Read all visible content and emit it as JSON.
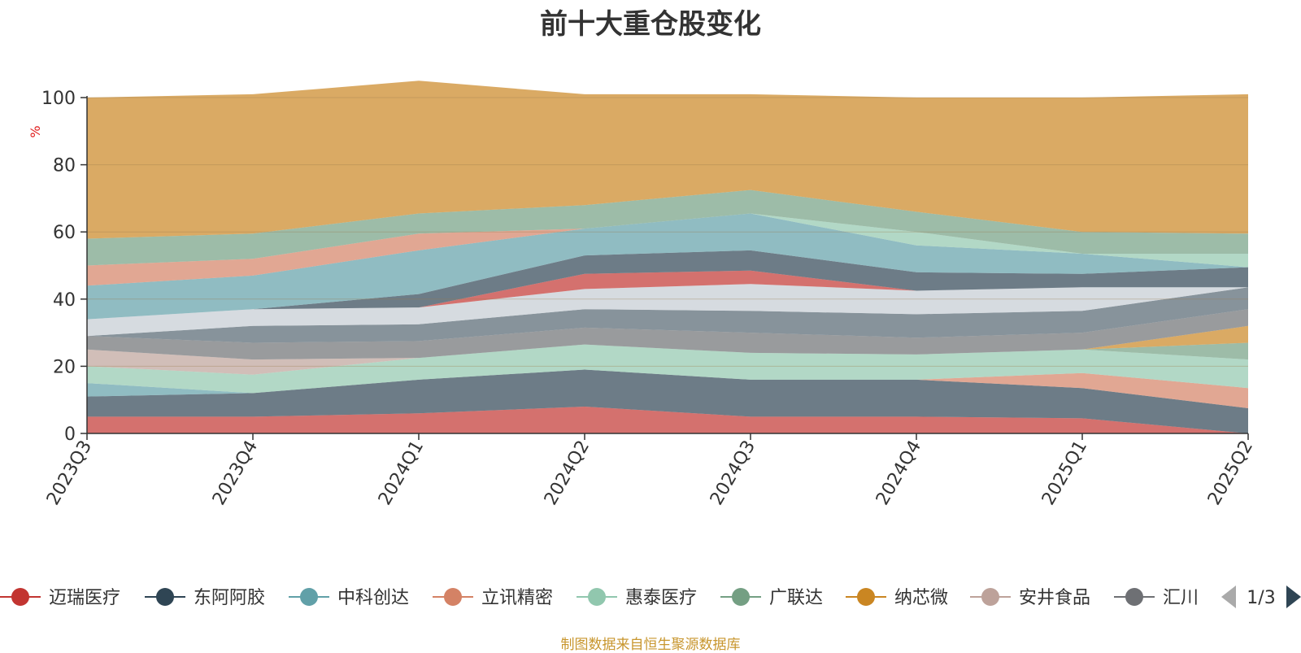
{
  "chart_data": {
    "type": "area",
    "title": "前十大重仓股变化",
    "ylabel": "%",
    "ylim": [
      0,
      100
    ],
    "yticks": [
      0,
      20,
      40,
      60,
      80,
      100
    ],
    "x": [
      "2023Q3",
      "2023Q4",
      "2024Q1",
      "2024Q2",
      "2024Q3",
      "2024Q4",
      "2025Q1",
      "2025Q2"
    ],
    "grid": true,
    "stacked_to_100": true,
    "series": [
      {
        "name": "迈瑞医疗",
        "color": "#c23531",
        "values": [
          5,
          5,
          6,
          8,
          5,
          5,
          4.5,
          0
        ]
      },
      {
        "name": "东阿阿胶",
        "color": "#2f4554",
        "values": [
          6,
          7,
          10,
          11,
          11,
          11,
          9,
          7.5
        ]
      },
      {
        "name": "中科创达",
        "color": "#61a0a8",
        "values": [
          4,
          0,
          0,
          0,
          0,
          0,
          0,
          0
        ]
      },
      {
        "name": "立讯精密",
        "color": "#d48265",
        "values": [
          0,
          0,
          0,
          0,
          0,
          0,
          4.5,
          6
        ]
      },
      {
        "name": "惠泰医疗",
        "color": "#91c7ae",
        "values": [
          5,
          5.5,
          6.5,
          7.5,
          8,
          7.5,
          7,
          8.5
        ]
      },
      {
        "name": "广联达",
        "color": "#749f83",
        "values": [
          0,
          0,
          0,
          0,
          0,
          0,
          0,
          5
        ]
      },
      {
        "name": "纳芯微",
        "color": "#ca8622",
        "values": [
          0,
          0,
          0,
          0,
          0,
          0,
          0,
          5
        ]
      },
      {
        "name": "安井食品",
        "color": "#bda29a",
        "values": [
          5,
          4.5,
          0,
          0,
          0,
          0,
          0,
          0
        ]
      },
      {
        "name": "汇川技术",
        "color": "#6e7074",
        "values": [
          4,
          5,
          5,
          5,
          6,
          5,
          5,
          5
        ]
      },
      {
        "name": "",
        "color": "#546570",
        "values": [
          0,
          5,
          5,
          5.5,
          6.5,
          7,
          6.5,
          6.5
        ]
      },
      {
        "name": "",
        "color": "#c4ccd3",
        "values": [
          5,
          5,
          5,
          6,
          8,
          7,
          7,
          0
        ]
      },
      {
        "name": "",
        "color": "#c23531",
        "values": [
          0,
          0,
          0,
          4.5,
          4,
          0,
          0,
          0
        ]
      },
      {
        "name": "",
        "color": "#2f4554",
        "values": [
          0,
          0,
          4,
          5.5,
          6,
          5.5,
          4,
          6
        ]
      },
      {
        "name": "",
        "color": "#61a0a8",
        "values": [
          10,
          10,
          13,
          8,
          11,
          8,
          6,
          0
        ]
      },
      {
        "name": "",
        "color": "#d48265",
        "values": [
          6,
          5,
          5,
          0,
          0,
          0,
          0,
          0
        ]
      },
      {
        "name": "",
        "color": "#91c7ae",
        "values": [
          0,
          0,
          0,
          0,
          0,
          4,
          0,
          4
        ]
      },
      {
        "name": "",
        "color": "#749f83",
        "values": [
          8,
          7.5,
          6,
          7,
          7,
          6,
          6.5,
          6
        ]
      },
      {
        "name": "",
        "color": "#ca8622",
        "values": [
          42,
          41.5,
          39.5,
          33,
          28.5,
          34,
          40,
          41.5
        ]
      }
    ]
  },
  "legend": {
    "items": [
      {
        "label": "迈瑞医疗",
        "color": "#c23531"
      },
      {
        "label": "东阿阿胶",
        "color": "#2f4554"
      },
      {
        "label": "中科创达",
        "color": "#61a0a8"
      },
      {
        "label": "立讯精密",
        "color": "#d48265"
      },
      {
        "label": "惠泰医疗",
        "color": "#91c7ae"
      },
      {
        "label": "广联达",
        "color": "#749f83"
      },
      {
        "label": "纳芯微",
        "color": "#ca8622"
      },
      {
        "label": "安井食品",
        "color": "#bda29a"
      },
      {
        "label": "汇川",
        "color": "#6e7074"
      }
    ],
    "page_indicator": "1/3",
    "prev_icon": "triangle-left-icon",
    "next_icon": "triangle-right-icon"
  },
  "source_note": "制图数据来自恒生聚源数据库"
}
